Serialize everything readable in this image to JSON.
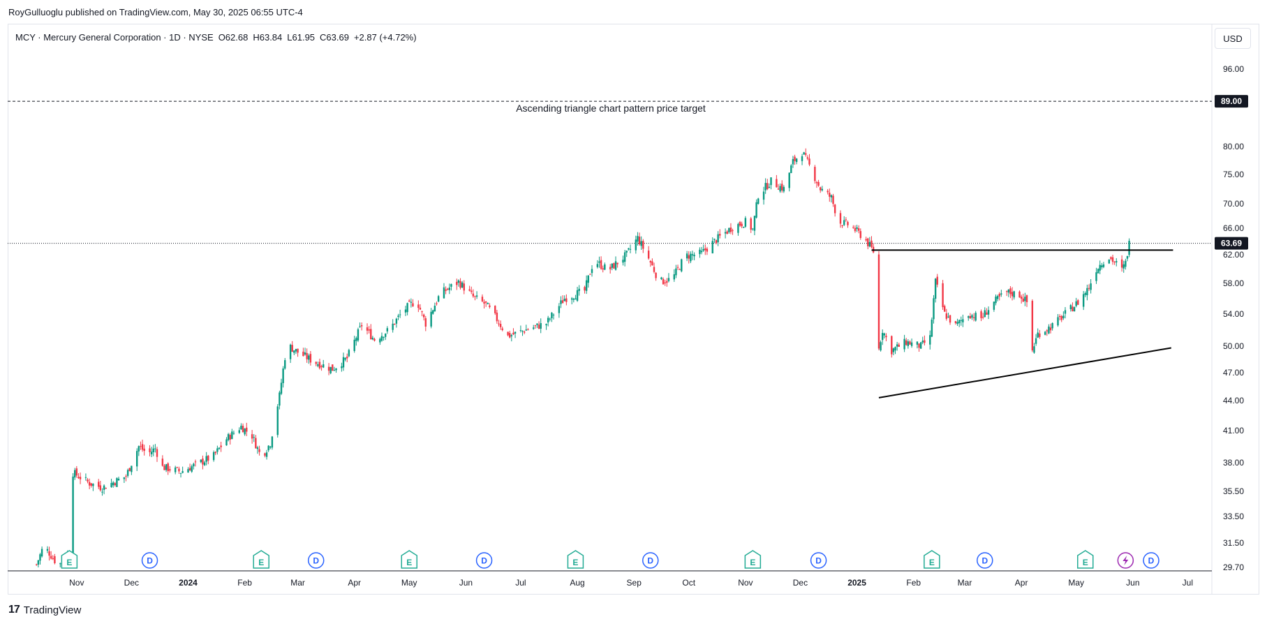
{
  "publisher": "RoyGulluoglu published on TradingView.com, May 30, 2025 06:55 UTC-4",
  "legend": {
    "symbol": "MCY · Mercury General Corporation · 1D · NYSE",
    "open": "O62.68",
    "high": "H63.84",
    "low": "L61.95",
    "close": "C63.69",
    "change": "+2.87 (+4.72%)"
  },
  "currency_button": "USD",
  "footer_brand": "TradingView",
  "colors": {
    "up": "#089981",
    "down": "#f23645",
    "axis": "#131722",
    "grid": "#e0e3eb",
    "earnings": "#22ab94",
    "dividend": "#2962ff",
    "split": "#9c27b0"
  },
  "chart_data": {
    "type": "candlestick",
    "scale": "log",
    "ylim": [
      29.7,
      100
    ],
    "y_ticks": [
      {
        "value": 96,
        "label": "96.00"
      },
      {
        "value": 80,
        "label": "80.00"
      },
      {
        "value": 75,
        "label": "75.00"
      },
      {
        "value": 70,
        "label": "70.00"
      },
      {
        "value": 66,
        "label": "66.00"
      },
      {
        "value": 62,
        "label": "62.00"
      },
      {
        "value": 58,
        "label": "58.00"
      },
      {
        "value": 54,
        "label": "54.00"
      },
      {
        "value": 50,
        "label": "50.00"
      },
      {
        "value": 47,
        "label": "47.00"
      },
      {
        "value": 44,
        "label": "44.00"
      },
      {
        "value": 41,
        "label": "41.00"
      },
      {
        "value": 38,
        "label": "38.00"
      },
      {
        "value": 35.5,
        "label": "35.50"
      },
      {
        "value": 33.5,
        "label": "33.50"
      },
      {
        "value": 31.5,
        "label": "31.50"
      },
      {
        "value": 29.7,
        "label": "29.70"
      }
    ],
    "x_ticks": [
      {
        "date": "2023-11-01",
        "label": "Nov",
        "bold": false
      },
      {
        "date": "2023-12-01",
        "label": "Dec",
        "bold": false
      },
      {
        "date": "2024-01-01",
        "label": "2024",
        "bold": true
      },
      {
        "date": "2024-02-01",
        "label": "Feb",
        "bold": false
      },
      {
        "date": "2024-03-01",
        "label": "Mar",
        "bold": false
      },
      {
        "date": "2024-04-01",
        "label": "Apr",
        "bold": false
      },
      {
        "date": "2024-05-01",
        "label": "May",
        "bold": false
      },
      {
        "date": "2024-06-01",
        "label": "Jun",
        "bold": false
      },
      {
        "date": "2024-07-01",
        "label": "Jul",
        "bold": false
      },
      {
        "date": "2024-08-01",
        "label": "Aug",
        "bold": false
      },
      {
        "date": "2024-09-01",
        "label": "Sep",
        "bold": false
      },
      {
        "date": "2024-10-01",
        "label": "Oct",
        "bold": false
      },
      {
        "date": "2024-11-01",
        "label": "Nov",
        "bold": false
      },
      {
        "date": "2024-12-01",
        "label": "Dec",
        "bold": false
      },
      {
        "date": "2025-01-01",
        "label": "2025",
        "bold": true
      },
      {
        "date": "2025-02-01",
        "label": "Feb",
        "bold": false
      },
      {
        "date": "2025-03-01",
        "label": "Mar",
        "bold": false
      },
      {
        "date": "2025-04-01",
        "label": "Apr",
        "bold": false
      },
      {
        "date": "2025-05-01",
        "label": "May",
        "bold": false
      },
      {
        "date": "2025-06-01",
        "label": "Jun",
        "bold": false
      },
      {
        "date": "2025-07-01",
        "label": "Jul",
        "bold": false
      }
    ],
    "price_path": [
      [
        "2023-10-10",
        29.9
      ],
      [
        "2023-10-14",
        31.3
      ],
      [
        "2023-10-20",
        30.2
      ],
      [
        "2023-10-25",
        29.8
      ],
      [
        "2023-10-27",
        31.0
      ],
      [
        "2023-10-28",
        37.3
      ],
      [
        "2023-11-08",
        36.2
      ],
      [
        "2023-11-15",
        35.8
      ],
      [
        "2023-11-28",
        36.8
      ],
      [
        "2023-12-05",
        39.5
      ],
      [
        "2023-12-10",
        38.8
      ],
      [
        "2023-12-14",
        39.3
      ],
      [
        "2023-12-18",
        37.6
      ],
      [
        "2023-12-28",
        37.2
      ],
      [
        "2024-01-05",
        37.8
      ],
      [
        "2024-01-15",
        38.6
      ],
      [
        "2024-01-22",
        40.2
      ],
      [
        "2024-01-30",
        41.4
      ],
      [
        "2024-02-05",
        40.5
      ],
      [
        "2024-02-10",
        38.5
      ],
      [
        "2024-02-15",
        39.8
      ],
      [
        "2024-02-20",
        44.5
      ],
      [
        "2024-02-24",
        50.2
      ],
      [
        "2024-03-01",
        49.3
      ],
      [
        "2024-03-10",
        48.2
      ],
      [
        "2024-03-20",
        47.4
      ],
      [
        "2024-03-28",
        48.6
      ],
      [
        "2024-04-05",
        52.6
      ],
      [
        "2024-04-12",
        50.8
      ],
      [
        "2024-04-20",
        52.0
      ],
      [
        "2024-04-28",
        54.5
      ],
      [
        "2024-05-05",
        55.8
      ],
      [
        "2024-05-10",
        52.8
      ],
      [
        "2024-05-18",
        56.6
      ],
      [
        "2024-05-28",
        58.2
      ],
      [
        "2024-06-05",
        56.2
      ],
      [
        "2024-06-12",
        55.2
      ],
      [
        "2024-06-18",
        53.3
      ],
      [
        "2024-06-24",
        51.2
      ],
      [
        "2024-07-05",
        52.1
      ],
      [
        "2024-07-15",
        52.8
      ],
      [
        "2024-07-25",
        56.0
      ],
      [
        "2024-08-05",
        57.0
      ],
      [
        "2024-08-10",
        61.2
      ],
      [
        "2024-08-18",
        59.8
      ],
      [
        "2024-08-28",
        62.0
      ],
      [
        "2024-09-03",
        64.5
      ],
      [
        "2024-09-08",
        62.0
      ],
      [
        "2024-09-15",
        58.2
      ],
      [
        "2024-09-22",
        58.6
      ],
      [
        "2024-09-29",
        61.8
      ],
      [
        "2024-10-08",
        62.2
      ],
      [
        "2024-10-15",
        64.0
      ],
      [
        "2024-10-25",
        66.2
      ],
      [
        "2024-11-01",
        67.0
      ],
      [
        "2024-11-05",
        65.8
      ],
      [
        "2024-11-08",
        71.5
      ],
      [
        "2024-11-15",
        73.8
      ],
      [
        "2024-11-22",
        72.5
      ],
      [
        "2024-11-27",
        77.2
      ],
      [
        "2024-12-02",
        79.0
      ],
      [
        "2024-12-06",
        76.5
      ],
      [
        "2024-12-12",
        72.5
      ],
      [
        "2024-12-18",
        71.0
      ],
      [
        "2024-12-22",
        67.0
      ],
      [
        "2024-12-28",
        66.5
      ],
      [
        "2025-01-05",
        64.5
      ],
      [
        "2025-01-10",
        62.5
      ],
      [
        "2025-01-12",
        48.5
      ],
      [
        "2025-01-15",
        52.0
      ],
      [
        "2025-01-20",
        49.5
      ],
      [
        "2025-01-28",
        50.5
      ],
      [
        "2025-02-05",
        50.0
      ],
      [
        "2025-02-10",
        51.0
      ],
      [
        "2025-02-13",
        58.2
      ],
      [
        "2025-02-18",
        54.0
      ],
      [
        "2025-02-24",
        52.5
      ],
      [
        "2025-03-03",
        54.0
      ],
      [
        "2025-03-10",
        53.5
      ],
      [
        "2025-03-17",
        55.5
      ],
      [
        "2025-03-24",
        56.8
      ],
      [
        "2025-03-31",
        56.5
      ],
      [
        "2025-04-04",
        55.5
      ],
      [
        "2025-04-07",
        49.5
      ],
      [
        "2025-04-10",
        51.5
      ],
      [
        "2025-04-18",
        52.5
      ],
      [
        "2025-04-25",
        54.0
      ],
      [
        "2025-05-02",
        55.5
      ],
      [
        "2025-05-08",
        57.5
      ],
      [
        "2025-05-12",
        60.0
      ],
      [
        "2025-05-18",
        61.8
      ],
      [
        "2025-05-22",
        61.0
      ],
      [
        "2025-05-26",
        59.8
      ],
      [
        "2025-05-28",
        60.8
      ],
      [
        "2025-05-30",
        63.69
      ]
    ],
    "current_price": {
      "value": 63.69,
      "label": "63.69"
    },
    "price_target": {
      "value": 89.0,
      "label": "89.00"
    },
    "drawings": {
      "target_text": "Ascending triangle chart pattern price target",
      "resistance": {
        "start": [
          "2025-01-09",
          62.68
        ],
        "end": [
          "2025-06-23",
          62.68
        ]
      },
      "support": {
        "start": [
          "2025-01-13",
          44.3
        ],
        "end": [
          "2025-06-22",
          49.8
        ]
      }
    },
    "events": [
      {
        "date": "2023-10-28",
        "type": "E"
      },
      {
        "date": "2023-12-11",
        "type": "D"
      },
      {
        "date": "2024-02-10",
        "type": "E"
      },
      {
        "date": "2024-03-11",
        "type": "D"
      },
      {
        "date": "2024-05-01",
        "type": "E"
      },
      {
        "date": "2024-06-11",
        "type": "D"
      },
      {
        "date": "2024-07-31",
        "type": "E"
      },
      {
        "date": "2024-09-10",
        "type": "D"
      },
      {
        "date": "2024-11-05",
        "type": "E"
      },
      {
        "date": "2024-12-11",
        "type": "D"
      },
      {
        "date": "2025-02-11",
        "type": "E"
      },
      {
        "date": "2025-03-12",
        "type": "D"
      },
      {
        "date": "2025-05-06",
        "type": "E"
      },
      {
        "date": "2025-05-28",
        "type": "S"
      },
      {
        "date": "2025-06-11",
        "type": "D"
      }
    ]
  }
}
